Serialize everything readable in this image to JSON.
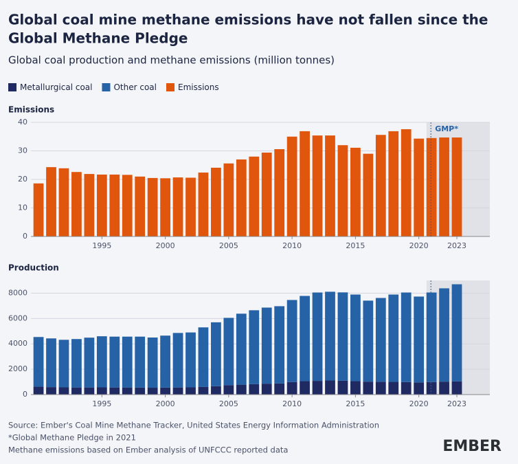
{
  "title": [
    "Global coal mine methane emissions have not fallen since the",
    "Global Methane Pledge"
  ],
  "subtitle": "Global coal production and methane emissions (million tonnes)",
  "source": [
    "Source: Ember's Coal Mine Methane Tracker, United States Energy Information Administration",
    "*Global Methane Pledge in 2021",
    "Methane emissions based on Ember analysis of UNFCCC reported data"
  ],
  "logo": "EMBER",
  "chart_data": [
    {
      "type": "bar",
      "title": "Emissions",
      "x": [
        1990,
        1991,
        1992,
        1993,
        1994,
        1995,
        1996,
        1997,
        1998,
        1999,
        2000,
        2001,
        2002,
        2003,
        2004,
        2005,
        2006,
        2007,
        2008,
        2009,
        2010,
        2011,
        2012,
        2013,
        2014,
        2015,
        2016,
        2017,
        2018,
        2019,
        2020,
        2021,
        2022,
        2023
      ],
      "series": [
        {
          "name": "Emissions",
          "color": "#e0560d",
          "values": [
            18.6,
            24.3,
            23.9,
            22.6,
            21.9,
            21.7,
            21.7,
            21.6,
            21.0,
            20.5,
            20.4,
            20.7,
            20.6,
            22.4,
            24.1,
            25.6,
            27.0,
            28.0,
            29.4,
            30.6,
            35.0,
            36.9,
            35.4,
            35.4,
            32.0,
            31.1,
            29.0,
            35.6,
            36.9,
            37.6,
            34.3,
            34.5,
            34.7,
            34.7
          ]
        }
      ],
      "xlim": [
        1989.4,
        2025.6
      ],
      "xticks": [
        1995,
        2000,
        2005,
        2010,
        2015,
        2020,
        2023
      ],
      "ylim": [
        0,
        40
      ],
      "yticks": [
        0,
        10,
        20,
        30,
        40
      ],
      "grid": true,
      "marker_x": 2021,
      "marker_label": "GMP*"
    },
    {
      "type": "stacked_bar",
      "title": "Production",
      "x": [
        1990,
        1991,
        1992,
        1993,
        1994,
        1995,
        1996,
        1997,
        1998,
        1999,
        2000,
        2001,
        2002,
        2003,
        2004,
        2005,
        2006,
        2007,
        2008,
        2009,
        2010,
        2011,
        2012,
        2013,
        2014,
        2015,
        2016,
        2017,
        2018,
        2019,
        2020,
        2021,
        2022,
        2023
      ],
      "series": [
        {
          "name": "Metallurgical coal",
          "color": "#1f2a62",
          "values": [
            620,
            590,
            570,
            560,
            560,
            570,
            560,
            560,
            550,
            540,
            550,
            560,
            570,
            600,
            660,
            740,
            780,
            820,
            860,
            880,
            990,
            1060,
            1080,
            1110,
            1090,
            1060,
            1020,
            1010,
            1000,
            990,
            960,
            990,
            1020,
            1040
          ]
        },
        {
          "name": "Other coal",
          "color": "#2662a6",
          "values": [
            3920,
            3840,
            3750,
            3820,
            3930,
            4030,
            4010,
            4010,
            4020,
            3960,
            4100,
            4300,
            4330,
            4700,
            5040,
            5310,
            5600,
            5830,
            6000,
            6090,
            6470,
            6720,
            6970,
            7000,
            6970,
            6830,
            6390,
            6610,
            6890,
            7060,
            6770,
            7060,
            7360,
            7660
          ]
        }
      ],
      "xlim": [
        1989.4,
        2025.6
      ],
      "xticks": [
        1995,
        2000,
        2005,
        2010,
        2015,
        2020,
        2023
      ],
      "ylim": [
        0,
        9000
      ],
      "yticks": [
        0,
        2000,
        4000,
        6000,
        8000
      ],
      "grid": true,
      "marker_x": 2021
    }
  ]
}
